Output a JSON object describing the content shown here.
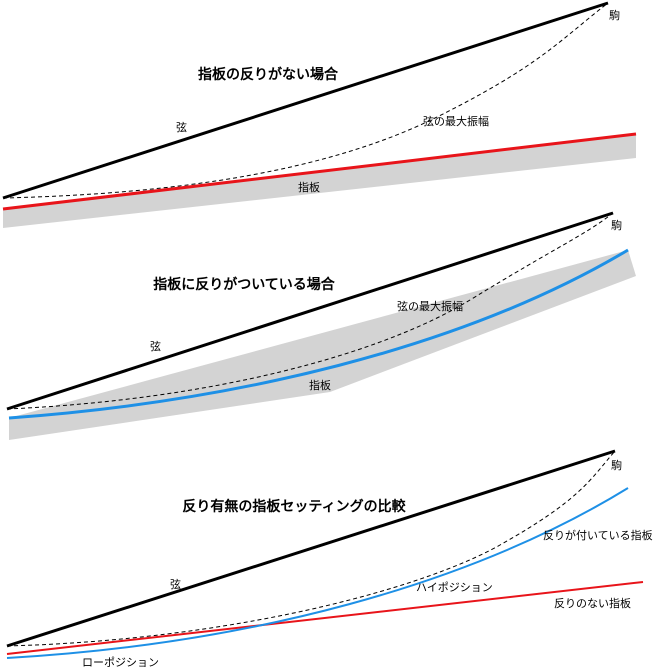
{
  "panel1": {
    "title": "指板の反りがない場合",
    "string_label": "弦",
    "nut_label": "駒",
    "amplitude_label": "弦の最大振幅",
    "fingerboard_label": "指板"
  },
  "panel2": {
    "title": "指板に反りがついている場合",
    "string_label": "弦",
    "nut_label": "駒",
    "amplitude_label": "弦の最大振幅",
    "fingerboard_label": "指板"
  },
  "panel3": {
    "title": "反り有無の指板セッティングの比較",
    "string_label": "弦",
    "nut_label": "駒",
    "curved_label": "反りが付いている指板",
    "straight_label": "反りのない指板",
    "high_position_label": "ハイポジション",
    "low_position_label": "ローポジション"
  },
  "colors": {
    "string": "#000000",
    "fingerboard_straight": "#e8141a",
    "fingerboard_curved": "#1e90e6",
    "fingerboard_body": "#d3d3d3"
  }
}
